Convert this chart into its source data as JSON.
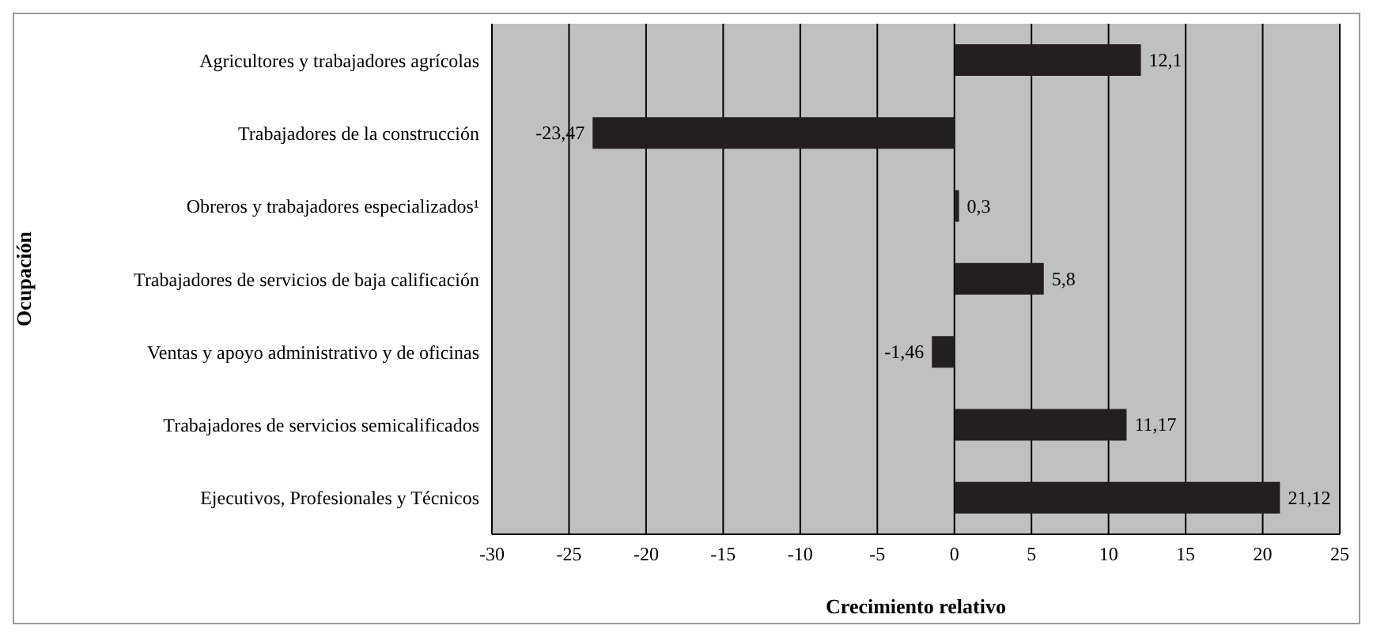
{
  "chart_data": {
    "type": "bar",
    "orientation": "horizontal",
    "xlabel": "Crecimiento relativo",
    "ylabel": "Ocupación",
    "categories": [
      "Agricultores y trabajadores agrícolas",
      "Trabajadores de la construcción",
      "Obreros y trabajadores especializados¹",
      "Trabajadores de servicios de baja calificación",
      "Ventas y apoyo administrativo y de oficinas",
      "Trabajadores de servicios semicalificados",
      "Ejecutivos, Profesionales y Técnicos"
    ],
    "values": [
      12.1,
      -23.47,
      0.3,
      5.8,
      -1.46,
      11.17,
      21.12
    ],
    "value_labels": [
      "12,1",
      "-23,47",
      "0,3",
      "5,8",
      "-1,46",
      "11,17",
      "21,12"
    ],
    "color": "#231f20",
    "xlim": [
      -30,
      25
    ],
    "xticks": [
      -30,
      -25,
      -20,
      -15,
      -10,
      -5,
      0,
      5,
      10,
      15,
      20,
      25
    ],
    "grid": "x"
  }
}
